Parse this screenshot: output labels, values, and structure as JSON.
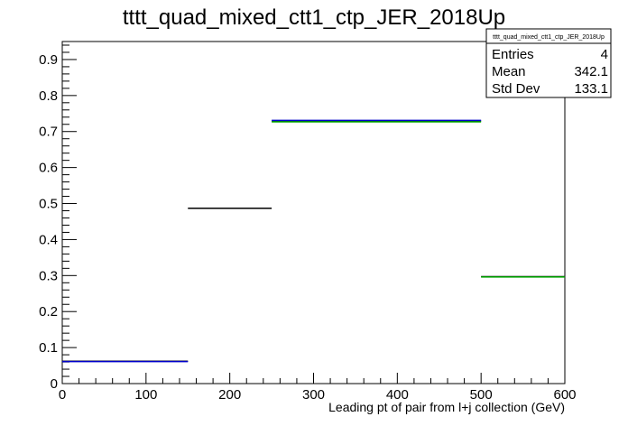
{
  "chart_data": {
    "type": "step-histogram",
    "title": "tttt_quad_mixed_ctt1_ctp_JER_2018Up",
    "xlabel": "Leading pt of pair from l+j collection (GeV)",
    "ylabel": "",
    "xlim": [
      0,
      600
    ],
    "ylim": [
      0,
      0.95
    ],
    "x_ticks": [
      0,
      100,
      200,
      300,
      400,
      500,
      600
    ],
    "x_tick_labels": [
      "0",
      "100",
      "200",
      "300",
      "400",
      "500",
      "600"
    ],
    "y_ticks": [
      0,
      0.1,
      0.2,
      0.3,
      0.4,
      0.5,
      0.6,
      0.7,
      0.8,
      0.9
    ],
    "y_tick_labels": [
      "0",
      "0.1",
      "0.2",
      "0.3",
      "0.4",
      "0.5",
      "0.6",
      "0.7",
      "0.8",
      "0.9"
    ],
    "series": [
      {
        "color": "#000000",
        "bins": [
          {
            "x0": 0,
            "x1": 150,
            "y": 0.062
          },
          {
            "x0": 150,
            "x1": 250,
            "y": 0.487
          },
          {
            "x0": 250,
            "x1": 500,
            "y": 0.729
          },
          {
            "x0": 500,
            "x1": 600,
            "y": 0.297
          }
        ]
      },
      {
        "color": "#0000cc",
        "bins": [
          {
            "x0": 0,
            "x1": 150,
            "y": 0.061
          },
          {
            "x0": 250,
            "x1": 500,
            "y": 0.731
          }
        ]
      },
      {
        "color": "#00aa00",
        "bins": [
          {
            "x0": 250,
            "x1": 500,
            "y": 0.727
          },
          {
            "x0": 500,
            "x1": 600,
            "y": 0.296
          }
        ]
      }
    ],
    "stats_box": {
      "title": "tttt_quad_mixed_ctt1_ctp_JER_2018Up",
      "rows": [
        {
          "label": "Entries",
          "value": "4"
        },
        {
          "label": "Mean",
          "value": "342.1"
        },
        {
          "label": "Std Dev",
          "value": "133.1"
        }
      ]
    },
    "grid": false,
    "legend": "none"
  }
}
